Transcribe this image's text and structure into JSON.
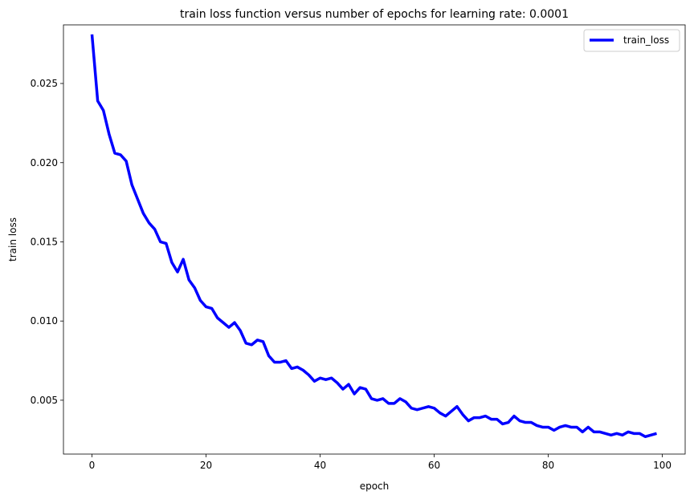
{
  "chart_data": {
    "type": "line",
    "title": "train loss function versus number of epochs for learning rate: 0.0001",
    "xlabel": "epoch",
    "ylabel": "train loss",
    "xlim": [
      -5,
      104
    ],
    "ylim": [
      0.0016,
      0.0287
    ],
    "xticks": [
      0,
      20,
      40,
      60,
      80,
      100
    ],
    "yticks": [
      0.005,
      0.01,
      0.015,
      0.02,
      0.025
    ],
    "xtick_labels": [
      "0",
      "20",
      "40",
      "60",
      "80",
      "100"
    ],
    "ytick_labels": [
      "0.005",
      "0.010",
      "0.015",
      "0.020",
      "0.025"
    ],
    "grid": false,
    "legend": {
      "placement": "top-right",
      "entries": [
        "train_loss"
      ]
    },
    "series": [
      {
        "name": "train_loss",
        "color": "#0000ff",
        "x": [
          0,
          1,
          2,
          3,
          4,
          5,
          6,
          7,
          8,
          9,
          10,
          11,
          12,
          13,
          14,
          15,
          16,
          17,
          18,
          19,
          20,
          21,
          22,
          23,
          24,
          25,
          26,
          27,
          28,
          29,
          30,
          31,
          32,
          33,
          34,
          35,
          36,
          37,
          38,
          39,
          40,
          41,
          42,
          43,
          44,
          45,
          46,
          47,
          48,
          49,
          50,
          51,
          52,
          53,
          54,
          55,
          56,
          57,
          58,
          59,
          60,
          61,
          62,
          63,
          64,
          65,
          66,
          67,
          68,
          69,
          70,
          71,
          72,
          73,
          74,
          75,
          76,
          77,
          78,
          79,
          80,
          81,
          82,
          83,
          84,
          85,
          86,
          87,
          88,
          89,
          90,
          91,
          92,
          93,
          94,
          95,
          96,
          97,
          98,
          99
        ],
        "y": [
          0.0281,
          0.0239,
          0.0233,
          0.0218,
          0.0206,
          0.0205,
          0.0201,
          0.0186,
          0.0177,
          0.0168,
          0.0162,
          0.0158,
          0.015,
          0.0149,
          0.0137,
          0.0131,
          0.0139,
          0.0126,
          0.0121,
          0.0113,
          0.0109,
          0.0108,
          0.0102,
          0.0099,
          0.0096,
          0.0099,
          0.0094,
          0.0086,
          0.0085,
          0.0088,
          0.0087,
          0.0078,
          0.0074,
          0.0074,
          0.0075,
          0.007,
          0.0071,
          0.0069,
          0.0066,
          0.0062,
          0.0064,
          0.0063,
          0.0064,
          0.0061,
          0.0057,
          0.006,
          0.0054,
          0.0058,
          0.0057,
          0.0051,
          0.005,
          0.0051,
          0.0048,
          0.0048,
          0.0051,
          0.0049,
          0.0045,
          0.0044,
          0.0045,
          0.0046,
          0.0045,
          0.0042,
          0.004,
          0.0043,
          0.0046,
          0.0041,
          0.0037,
          0.0039,
          0.0039,
          0.004,
          0.0038,
          0.0038,
          0.0035,
          0.0036,
          0.004,
          0.0037,
          0.0036,
          0.0036,
          0.0034,
          0.0033,
          0.0033,
          0.0031,
          0.0033,
          0.0034,
          0.0033,
          0.0033,
          0.003,
          0.0033,
          0.003,
          0.003,
          0.0029,
          0.0028,
          0.0029,
          0.0028,
          0.003,
          0.0029,
          0.0029,
          0.0027,
          0.0028,
          0.0029
        ]
      }
    ]
  }
}
